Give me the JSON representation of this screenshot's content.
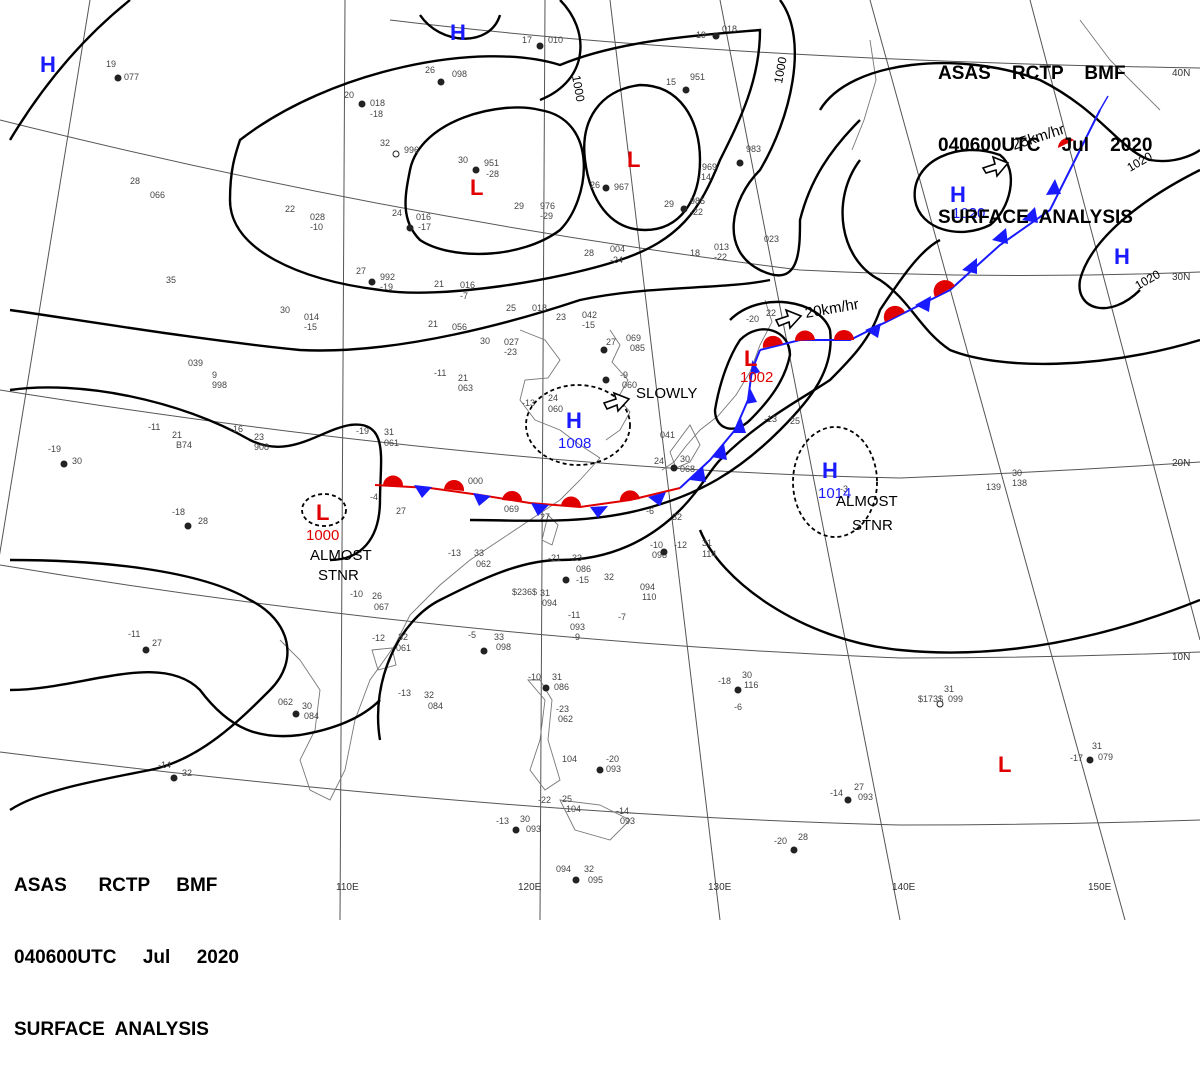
{
  "chart": {
    "product": "ASAS",
    "station": "RCTP",
    "unit": "BMF",
    "valid_time": "040600UTC",
    "month": "Jul",
    "year": "2020",
    "title": "SURFACE ANALYSIS"
  },
  "header_tr": {
    "line1": "ASAS    RCTP    BMF",
    "line2": "040600UTC    Jul    2020",
    "line3": "SURFACE  ANALYSIS"
  },
  "header_bl": {
    "line1": "ASAS      RCTP     BMF",
    "line2": "040600UTC     Jul     2020",
    "line3": "SURFACE  ANALYSIS"
  },
  "lon_labels": [
    "110E",
    "120E",
    "130E",
    "140E",
    "150E"
  ],
  "lat_labels": [
    "40N",
    "30N",
    "20N",
    "10N"
  ],
  "pressure_centers": [
    {
      "type": "H",
      "value": "",
      "color": "#1a1aff"
    },
    {
      "type": "H",
      "value": "",
      "color": "#1a1aff"
    },
    {
      "type": "L",
      "value": "",
      "color": "#e00000"
    },
    {
      "type": "L",
      "value": "",
      "color": "#e00000"
    },
    {
      "type": "H",
      "value": "1020",
      "color": "#1a1aff"
    },
    {
      "type": "H",
      "value": "",
      "color": "#1a1aff"
    },
    {
      "type": "H",
      "value": "1008",
      "color": "#1a1aff"
    },
    {
      "type": "L",
      "value": "1002",
      "color": "#e00000"
    },
    {
      "type": "H",
      "value": "1014",
      "color": "#1a1aff"
    },
    {
      "type": "L",
      "value": "1000",
      "color": "#e00000"
    },
    {
      "type": "L",
      "value": "",
      "color": "#e00000"
    }
  ],
  "isobar_labels": [
    "1000",
    "1000",
    "1020",
    "1020"
  ],
  "motion_labels": [
    "25km/hr",
    "20km/hr",
    "SLOWLY"
  ],
  "stationary_labels": [
    {
      "line1": "ALMOST",
      "line2": "STNR"
    },
    {
      "line1": "ALMOST",
      "line2": "STNR"
    }
  ],
  "station_labels": [
    "19",
    "077",
    "26",
    "098",
    "17",
    "010",
    "19",
    "018",
    "20",
    "018",
    "-18",
    "32",
    "996",
    "30",
    "951",
    "-28",
    "26",
    "967",
    "15",
    "951",
    "969",
    "-14",
    "983",
    "29",
    "985",
    "-22",
    "24",
    "016",
    "-17",
    "22",
    "028",
    "-10",
    "28",
    "066",
    "29",
    "976",
    "-29",
    "28",
    "004",
    "-24",
    "18",
    "013",
    "-22",
    "023",
    "27",
    "992",
    "-19",
    "21",
    "016",
    "-7",
    "35",
    "30",
    "014",
    "-15",
    "25",
    "018",
    "23",
    "042",
    "-15",
    "21",
    "056",
    "30",
    "027",
    "-23",
    "27",
    "069",
    "085",
    "-20",
    "22",
    "039",
    "9",
    "998",
    "-11",
    "21",
    "063",
    "-13",
    "24",
    "060",
    "-9",
    "060",
    "-11",
    "21",
    "B74",
    "-16",
    "23",
    "908",
    "-19",
    "31",
    "061",
    "-19",
    "30",
    "000",
    "069",
    "27",
    "-4",
    "27",
    "-18",
    "28",
    "041",
    "24",
    "30",
    "068",
    "-13",
    "25",
    "-3",
    "139",
    "30",
    "138",
    "-6",
    "32",
    "-10",
    "098",
    "-12",
    "31",
    "114",
    "-13",
    "33",
    "062",
    "-21",
    "33",
    "086",
    "-15",
    "32",
    "094",
    "110",
    "-7",
    "$236$",
    "31",
    "094",
    "-11",
    "093",
    "-9",
    "-5",
    "33",
    "098",
    "-10",
    "26",
    "067",
    "-12",
    "32",
    "061",
    "-11",
    "27",
    "062",
    "30",
    "084",
    "-13",
    "32",
    "084",
    "-10",
    "31",
    "086",
    "-23",
    "062",
    "-18",
    "30",
    "116",
    "-6",
    "$173$",
    "31",
    "099",
    "-17",
    "31",
    "079",
    "-14",
    "32",
    "104",
    "-20",
    "093",
    "-14",
    "27",
    "093",
    "-22",
    "25",
    "104",
    "-14",
    "093",
    "-13",
    "30",
    "093",
    "-20",
    "28",
    "094",
    "32",
    "095",
    "-17"
  ]
}
